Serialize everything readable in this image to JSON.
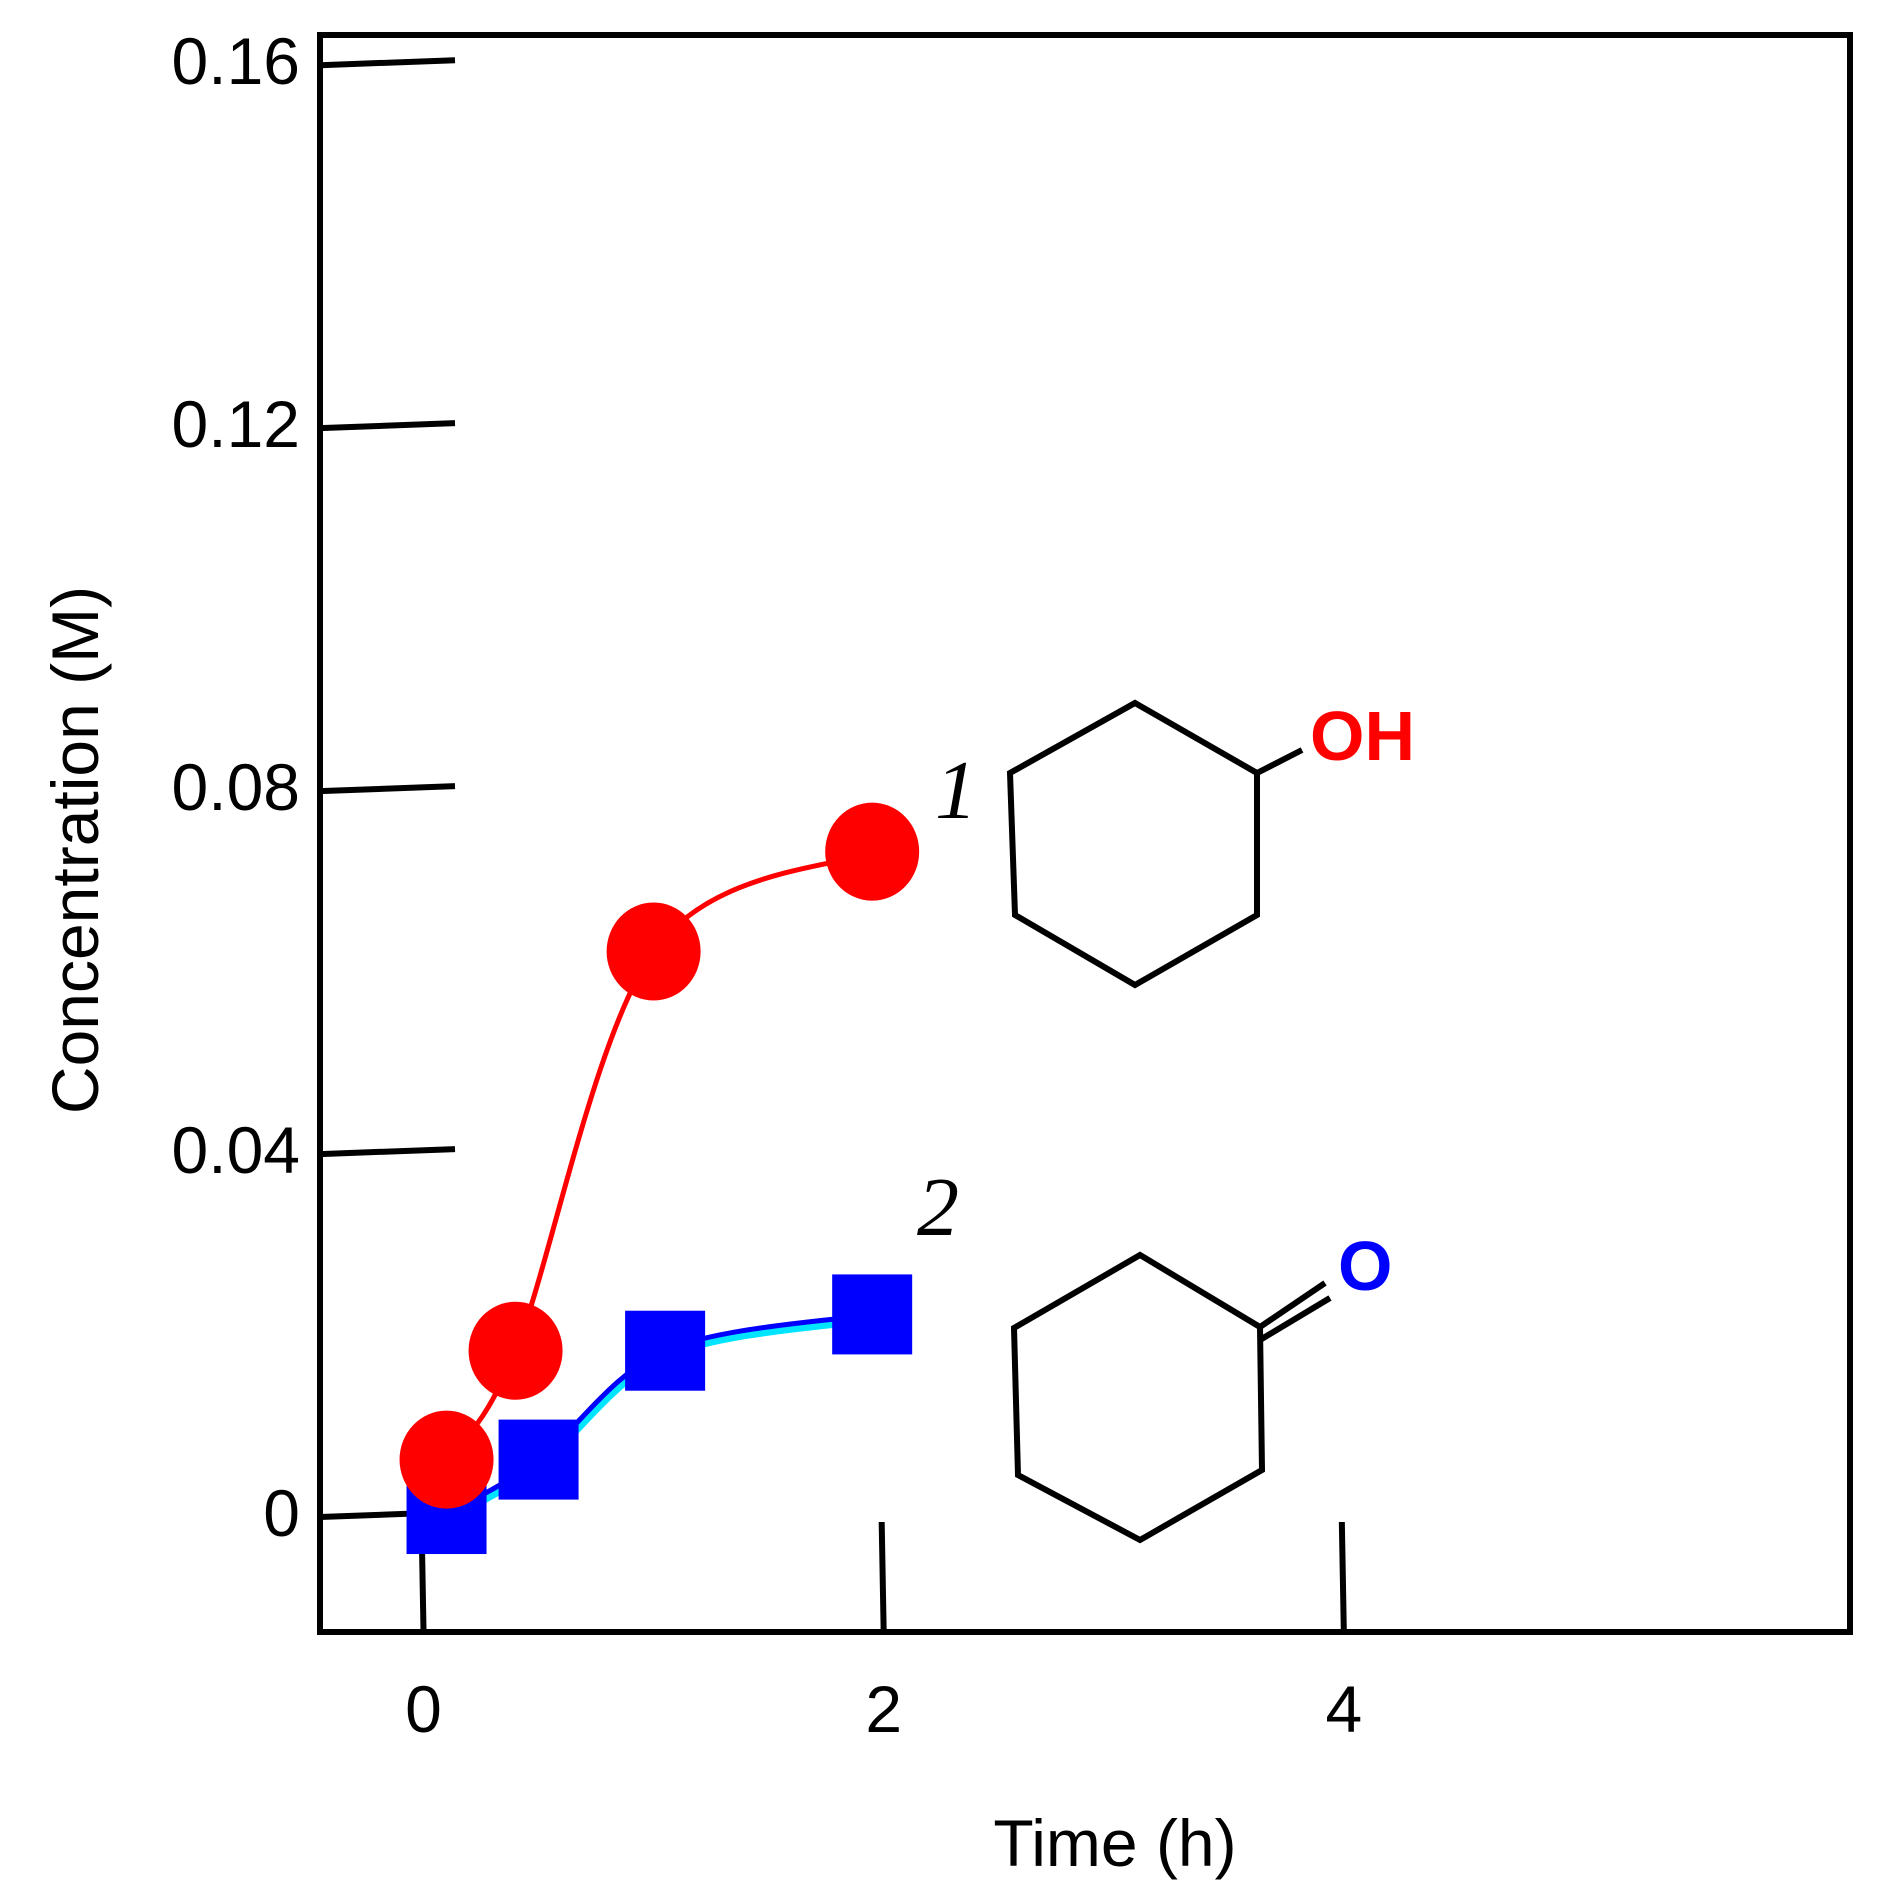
{
  "chart_data": {
    "type": "line",
    "title": "",
    "xlabel": "Time (h)",
    "ylabel": "Concentration (M)",
    "xlim": [
      -0.45,
      6.2
    ],
    "ylim": [
      -0.013,
      0.163
    ],
    "x_ticks": [
      0,
      2,
      4
    ],
    "x_tick_labels": [
      "0",
      "2",
      "4"
    ],
    "y_ticks": [
      0,
      0.04,
      0.08,
      0.12,
      0.16
    ],
    "y_tick_labels": [
      "0",
      "0.04",
      "0.08",
      "0.12",
      "0.16"
    ],
    "grid": false,
    "legend": "none",
    "series": [
      {
        "label": "1",
        "marker": "circle",
        "color": "#ff0000",
        "x": [
          0.1,
          0.4,
          1.0,
          1.95
        ],
        "y": [
          0.006,
          0.018,
          0.062,
          0.073
        ]
      },
      {
        "label": "2",
        "marker": "square",
        "color": "#0000ff",
        "line_color": "#0000ff",
        "line_shadow_color": "#00e5ff",
        "x": [
          0.1,
          0.5,
          1.05,
          1.95
        ],
        "y": [
          0.0,
          0.006,
          0.018,
          0.022
        ]
      }
    ],
    "annotations": [
      {
        "text": "OH",
        "color": "#ff0000",
        "structure": "cyclohexanol"
      },
      {
        "text": "O",
        "color": "#0000ff",
        "structure": "cyclohexanone"
      }
    ]
  }
}
